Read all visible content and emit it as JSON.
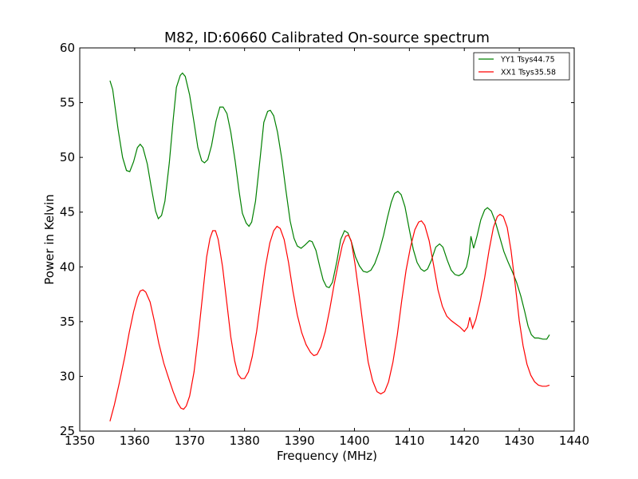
{
  "chart_data": {
    "type": "line",
    "title": "M82, ID:60660 Calibrated On-source spectrum",
    "xlabel": "Frequency (MHz)",
    "ylabel": "Power in Kelvin",
    "xlim": [
      1350,
      1440
    ],
    "ylim": [
      25,
      60
    ],
    "xticks": [
      1350,
      1360,
      1370,
      1380,
      1390,
      1400,
      1410,
      1420,
      1430,
      1440
    ],
    "yticks": [
      25,
      30,
      35,
      40,
      45,
      50,
      55,
      60
    ],
    "grid": false,
    "legend_position": "top-right",
    "series": [
      {
        "name": "YY1 Tsys44.75",
        "color": "#008000",
        "points": [
          [
            1355.5,
            57.0
          ],
          [
            1356.0,
            56.2
          ],
          [
            1357.0,
            52.5
          ],
          [
            1357.8,
            50.0
          ],
          [
            1358.5,
            48.8
          ],
          [
            1359.1,
            48.7
          ],
          [
            1359.8,
            49.6
          ],
          [
            1360.5,
            50.9
          ],
          [
            1361.0,
            51.2
          ],
          [
            1361.5,
            50.9
          ],
          [
            1362.3,
            49.4
          ],
          [
            1363.0,
            47.3
          ],
          [
            1363.8,
            45.1
          ],
          [
            1364.3,
            44.4
          ],
          [
            1364.9,
            44.7
          ],
          [
            1365.5,
            46.0
          ],
          [
            1366.3,
            49.5
          ],
          [
            1367.0,
            53.4
          ],
          [
            1367.6,
            56.4
          ],
          [
            1368.3,
            57.5
          ],
          [
            1368.7,
            57.7
          ],
          [
            1369.2,
            57.4
          ],
          [
            1370.0,
            55.7
          ],
          [
            1370.8,
            53.2
          ],
          [
            1371.5,
            50.9
          ],
          [
            1372.2,
            49.7
          ],
          [
            1372.7,
            49.5
          ],
          [
            1373.3,
            49.8
          ],
          [
            1374.0,
            51.1
          ],
          [
            1374.8,
            53.3
          ],
          [
            1375.5,
            54.6
          ],
          [
            1376.1,
            54.6
          ],
          [
            1376.8,
            54.0
          ],
          [
            1377.5,
            52.3
          ],
          [
            1378.3,
            49.6
          ],
          [
            1379.0,
            46.9
          ],
          [
            1379.6,
            44.9
          ],
          [
            1380.3,
            44.0
          ],
          [
            1380.8,
            43.7
          ],
          [
            1381.3,
            44.1
          ],
          [
            1382.0,
            46.0
          ],
          [
            1382.8,
            49.8
          ],
          [
            1383.5,
            53.2
          ],
          [
            1384.2,
            54.2
          ],
          [
            1384.7,
            54.3
          ],
          [
            1385.3,
            53.8
          ],
          [
            1386.0,
            52.3
          ],
          [
            1386.8,
            49.8
          ],
          [
            1387.5,
            47.1
          ],
          [
            1388.3,
            44.2
          ],
          [
            1389.0,
            42.6
          ],
          [
            1389.6,
            41.9
          ],
          [
            1390.3,
            41.7
          ],
          [
            1391.0,
            42.0
          ],
          [
            1391.8,
            42.4
          ],
          [
            1392.3,
            42.3
          ],
          [
            1393.0,
            41.5
          ],
          [
            1393.7,
            40.0
          ],
          [
            1394.3,
            38.8
          ],
          [
            1394.9,
            38.2
          ],
          [
            1395.4,
            38.1
          ],
          [
            1396.0,
            38.6
          ],
          [
            1396.8,
            40.5
          ],
          [
            1397.5,
            42.5
          ],
          [
            1398.2,
            43.3
          ],
          [
            1398.8,
            43.1
          ],
          [
            1399.5,
            42.2
          ],
          [
            1400.2,
            40.9
          ],
          [
            1400.9,
            40.1
          ],
          [
            1401.6,
            39.6
          ],
          [
            1402.3,
            39.5
          ],
          [
            1403.0,
            39.7
          ],
          [
            1403.7,
            40.3
          ],
          [
            1404.5,
            41.4
          ],
          [
            1405.3,
            42.9
          ],
          [
            1406.0,
            44.5
          ],
          [
            1406.7,
            45.9
          ],
          [
            1407.3,
            46.7
          ],
          [
            1407.9,
            46.9
          ],
          [
            1408.5,
            46.6
          ],
          [
            1409.2,
            45.5
          ],
          [
            1410.0,
            43.4
          ],
          [
            1410.7,
            41.6
          ],
          [
            1411.4,
            40.4
          ],
          [
            1412.1,
            39.8
          ],
          [
            1412.7,
            39.6
          ],
          [
            1413.3,
            39.8
          ],
          [
            1414.0,
            40.6
          ],
          [
            1414.8,
            41.8
          ],
          [
            1415.5,
            42.1
          ],
          [
            1416.1,
            41.8
          ],
          [
            1416.9,
            40.6
          ],
          [
            1417.6,
            39.7
          ],
          [
            1418.3,
            39.3
          ],
          [
            1419.0,
            39.2
          ],
          [
            1419.7,
            39.4
          ],
          [
            1420.4,
            40.0
          ],
          [
            1420.9,
            41.2
          ],
          [
            1421.2,
            42.8
          ],
          [
            1421.7,
            41.7
          ],
          [
            1422.3,
            42.8
          ],
          [
            1423.0,
            44.3
          ],
          [
            1423.7,
            45.2
          ],
          [
            1424.2,
            45.4
          ],
          [
            1424.9,
            45.1
          ],
          [
            1425.6,
            44.2
          ],
          [
            1426.4,
            42.8
          ],
          [
            1427.2,
            41.4
          ],
          [
            1428.0,
            40.4
          ],
          [
            1428.8,
            39.5
          ],
          [
            1429.5,
            38.6
          ],
          [
            1430.3,
            37.3
          ],
          [
            1431.0,
            35.9
          ],
          [
            1431.6,
            34.6
          ],
          [
            1432.2,
            33.8
          ],
          [
            1432.8,
            33.5
          ],
          [
            1433.5,
            33.5
          ],
          [
            1434.3,
            33.4
          ],
          [
            1435.0,
            33.4
          ],
          [
            1435.5,
            33.8
          ]
        ]
      },
      {
        "name": "XX1 Tsys35.58",
        "color": "#ff0000",
        "points": [
          [
            1355.5,
            25.9
          ],
          [
            1356.3,
            27.4
          ],
          [
            1357.2,
            29.4
          ],
          [
            1358.2,
            31.8
          ],
          [
            1359.0,
            34.0
          ],
          [
            1359.8,
            35.9
          ],
          [
            1360.5,
            37.2
          ],
          [
            1361.0,
            37.8
          ],
          [
            1361.5,
            37.9
          ],
          [
            1362.0,
            37.7
          ],
          [
            1362.8,
            36.8
          ],
          [
            1363.6,
            35.0
          ],
          [
            1364.4,
            33.0
          ],
          [
            1365.3,
            31.2
          ],
          [
            1366.2,
            29.8
          ],
          [
            1367.0,
            28.6
          ],
          [
            1367.8,
            27.6
          ],
          [
            1368.4,
            27.1
          ],
          [
            1368.9,
            27.0
          ],
          [
            1369.4,
            27.3
          ],
          [
            1370.0,
            28.2
          ],
          [
            1370.8,
            30.4
          ],
          [
            1371.6,
            33.8
          ],
          [
            1372.4,
            37.6
          ],
          [
            1373.1,
            40.9
          ],
          [
            1373.7,
            42.6
          ],
          [
            1374.2,
            43.3
          ],
          [
            1374.7,
            43.3
          ],
          [
            1375.2,
            42.5
          ],
          [
            1376.0,
            40.0
          ],
          [
            1376.8,
            36.6
          ],
          [
            1377.5,
            33.6
          ],
          [
            1378.2,
            31.4
          ],
          [
            1378.8,
            30.2
          ],
          [
            1379.4,
            29.8
          ],
          [
            1380.0,
            29.8
          ],
          [
            1380.7,
            30.4
          ],
          [
            1381.4,
            31.8
          ],
          [
            1382.2,
            34.1
          ],
          [
            1383.0,
            37.1
          ],
          [
            1383.8,
            40.0
          ],
          [
            1384.6,
            42.2
          ],
          [
            1385.3,
            43.3
          ],
          [
            1385.9,
            43.7
          ],
          [
            1386.5,
            43.5
          ],
          [
            1387.2,
            42.5
          ],
          [
            1388.0,
            40.4
          ],
          [
            1388.8,
            37.8
          ],
          [
            1389.6,
            35.6
          ],
          [
            1390.4,
            34.0
          ],
          [
            1391.2,
            32.9
          ],
          [
            1392.0,
            32.2
          ],
          [
            1392.6,
            31.9
          ],
          [
            1393.2,
            32.0
          ],
          [
            1393.9,
            32.7
          ],
          [
            1394.7,
            34.1
          ],
          [
            1395.5,
            36.1
          ],
          [
            1396.3,
            38.4
          ],
          [
            1397.1,
            40.4
          ],
          [
            1397.8,
            42.0
          ],
          [
            1398.4,
            42.8
          ],
          [
            1398.9,
            42.9
          ],
          [
            1399.4,
            42.4
          ],
          [
            1400.1,
            40.3
          ],
          [
            1400.9,
            37.3
          ],
          [
            1401.7,
            34.1
          ],
          [
            1402.5,
            31.3
          ],
          [
            1403.3,
            29.6
          ],
          [
            1404.1,
            28.6
          ],
          [
            1404.8,
            28.4
          ],
          [
            1405.5,
            28.6
          ],
          [
            1406.2,
            29.5
          ],
          [
            1407.0,
            31.3
          ],
          [
            1407.8,
            33.8
          ],
          [
            1408.6,
            36.9
          ],
          [
            1409.4,
            39.7
          ],
          [
            1410.2,
            41.8
          ],
          [
            1411.0,
            43.4
          ],
          [
            1411.7,
            44.1
          ],
          [
            1412.2,
            44.2
          ],
          [
            1412.8,
            43.8
          ],
          [
            1413.6,
            42.4
          ],
          [
            1414.4,
            40.2
          ],
          [
            1415.2,
            37.9
          ],
          [
            1416.0,
            36.4
          ],
          [
            1416.8,
            35.5
          ],
          [
            1417.6,
            35.1
          ],
          [
            1418.4,
            34.8
          ],
          [
            1419.2,
            34.5
          ],
          [
            1420.0,
            34.1
          ],
          [
            1420.6,
            34.5
          ],
          [
            1421.0,
            35.4
          ],
          [
            1421.5,
            34.4
          ],
          [
            1422.1,
            35.2
          ],
          [
            1422.9,
            36.9
          ],
          [
            1423.7,
            39.0
          ],
          [
            1424.5,
            41.5
          ],
          [
            1425.3,
            43.6
          ],
          [
            1426.0,
            44.6
          ],
          [
            1426.5,
            44.8
          ],
          [
            1427.1,
            44.6
          ],
          [
            1427.8,
            43.6
          ],
          [
            1428.5,
            41.5
          ],
          [
            1429.3,
            38.2
          ],
          [
            1430.0,
            35.1
          ],
          [
            1430.7,
            32.8
          ],
          [
            1431.4,
            31.1
          ],
          [
            1432.1,
            30.1
          ],
          [
            1432.8,
            29.5
          ],
          [
            1433.5,
            29.2
          ],
          [
            1434.2,
            29.1
          ],
          [
            1434.9,
            29.1
          ],
          [
            1435.5,
            29.2
          ]
        ]
      }
    ]
  }
}
